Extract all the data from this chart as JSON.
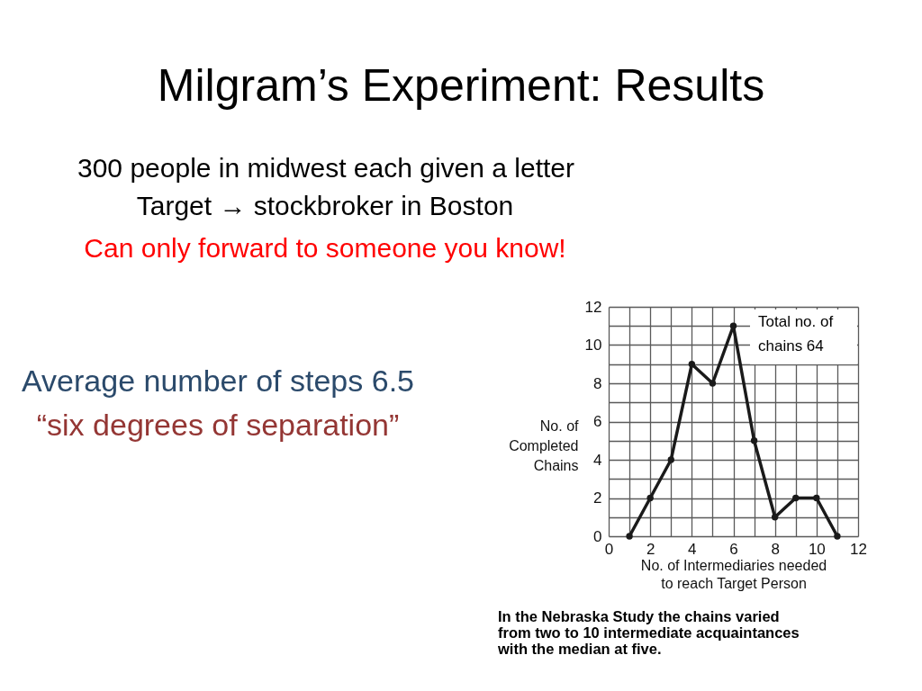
{
  "chart_data": {
    "type": "line",
    "title": "Milgram’s Experiment: Results",
    "xlabel": "No. of Intermediaries needed to reach Target Person",
    "ylabel": "No. of Completed Chains",
    "x": [
      1,
      2,
      3,
      4,
      5,
      6,
      7,
      8,
      9,
      10,
      11
    ],
    "values": [
      0,
      2,
      4,
      9,
      8,
      11,
      5,
      1,
      2,
      2,
      0
    ],
    "color": "#1a1a1a",
    "xlim": [
      0,
      12
    ],
    "ylim": [
      0,
      12
    ],
    "xticks": [
      0,
      {
        "value": 1,
        "label": null
      },
      2,
      {
        "value": 3,
        "label": null
      },
      4,
      {
        "value": 5,
        "label": null
      },
      6,
      {
        "value": 7,
        "label": null
      },
      8,
      {
        "value": 9,
        "label": null
      },
      10,
      {
        "value": 11,
        "label": null
      },
      12
    ],
    "yticks": [
      0,
      {
        "value": 1,
        "label": null
      },
      2,
      {
        "value": 3,
        "label": null
      },
      4,
      {
        "value": 5,
        "label": null
      },
      6,
      {
        "value": 7,
        "label": null
      },
      8,
      {
        "value": 9,
        "label": null
      },
      10,
      {
        "value": 11,
        "label": null
      },
      12
    ],
    "grid": true,
    "marker": "circle",
    "line_style": "solid",
    "annotations": [
      "300 people in midwest each given a letter",
      "Target → stockbroker in Boston",
      "Can only forward to someone you know!",
      "Average number of steps 6.5",
      "“six degrees of separation”",
      "Total no. of chains 64",
      "In the Nebraska Study the chains varied from two to 10 intermediate acquaintances with the median at five."
    ]
  }
}
